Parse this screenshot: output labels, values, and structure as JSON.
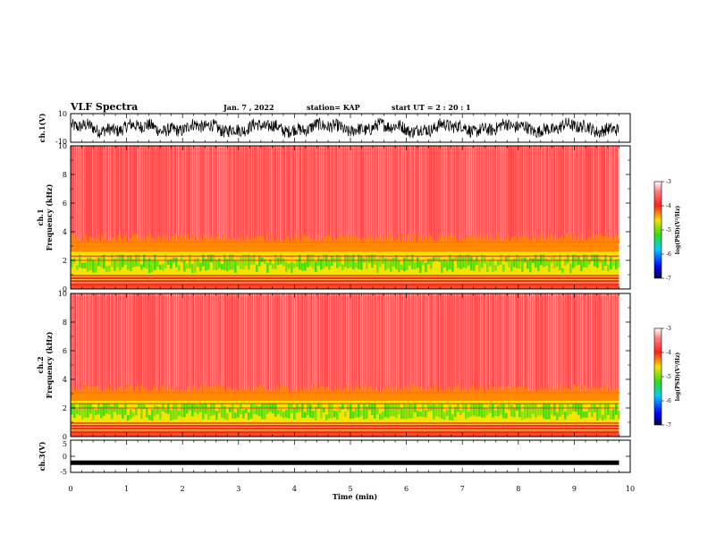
{
  "header": {
    "title": "VLF Spectra",
    "date": "Jan. 7 , 2022",
    "station": "station= KAP",
    "start_ut": "start UT =  2 : 20 : 1"
  },
  "colors": {
    "red": "#ff2020",
    "orange": "#ff8a00",
    "yellow": "#f5e400",
    "green": "#33dd11",
    "blue": "#0000ff",
    "navy": "#00003a",
    "waveform": "#000000"
  },
  "chart_data": [
    {
      "type": "line",
      "panel": "ch1-waveform",
      "ylabel": "ch.1(V)",
      "ylim": [
        -10,
        10
      ],
      "yticks": [
        "10",
        "-10"
      ],
      "description_values": {
        "x_range_min": [
          0,
          9.8
        ],
        "typical_amplitude_v": [
          -6,
          6
        ]
      }
    },
    {
      "type": "heatmap",
      "panel": "ch1-spectrogram",
      "ylabel_line1": "ch.1",
      "ylabel_line2": "Frequency (kHz)",
      "ylim": [
        0,
        10
      ],
      "yticks": [
        "0",
        "2",
        "4",
        "6",
        "8",
        "10"
      ],
      "x_range_min": [
        0,
        9.8
      ],
      "bands_khz": [
        {
          "from": 3.2,
          "to": 10,
          "log_psd": -4.0
        },
        {
          "from": 2.6,
          "to": 3.2,
          "log_psd": -4.5
        },
        {
          "from": 0.9,
          "to": 2.6,
          "log_psd": -5.3
        },
        {
          "from": 0.0,
          "to": 0.9,
          "log_psd": -3.8
        }
      ],
      "colorbar": {
        "label": "log(PSD)(V²/Hz)",
        "ticks": [
          "-3",
          "-4",
          "-5",
          "-6",
          "-7"
        ],
        "range": [
          -7,
          -3
        ]
      }
    },
    {
      "type": "heatmap",
      "panel": "ch2-spectrogram",
      "ylabel_line1": "ch.2",
      "ylabel_line2": "Frequency (kHz)",
      "ylim": [
        0,
        10
      ],
      "yticks": [
        "0",
        "2",
        "4",
        "6",
        "8",
        "10"
      ],
      "x_range_min": [
        0,
        9.8
      ],
      "bands_khz": [
        {
          "from": 3.0,
          "to": 10,
          "log_psd": -4.0
        },
        {
          "from": 2.5,
          "to": 3.0,
          "log_psd": -4.5
        },
        {
          "from": 0.9,
          "to": 2.5,
          "log_psd": -5.3
        },
        {
          "from": 0.0,
          "to": 0.9,
          "log_psd": -3.8
        }
      ],
      "colorbar": {
        "label": "log(PSD)(V²/Hz)",
        "ticks": [
          "-3",
          "-4",
          "-5",
          "-6",
          "-7"
        ],
        "range": [
          -7,
          -3
        ]
      }
    },
    {
      "type": "line",
      "panel": "ch3-waveform",
      "ylabel": "ch.3(V)",
      "ylim": [
        -5,
        5
      ],
      "yticks": [
        "5",
        "0",
        "-5"
      ],
      "level_v": -2,
      "x_range_min": [
        0,
        9.8
      ]
    }
  ],
  "xaxis": {
    "label": "Time (min)",
    "ticks": [
      "0",
      "1",
      "2",
      "3",
      "4",
      "5",
      "6",
      "7",
      "8",
      "9",
      "10"
    ],
    "xlim": [
      0,
      10
    ]
  }
}
